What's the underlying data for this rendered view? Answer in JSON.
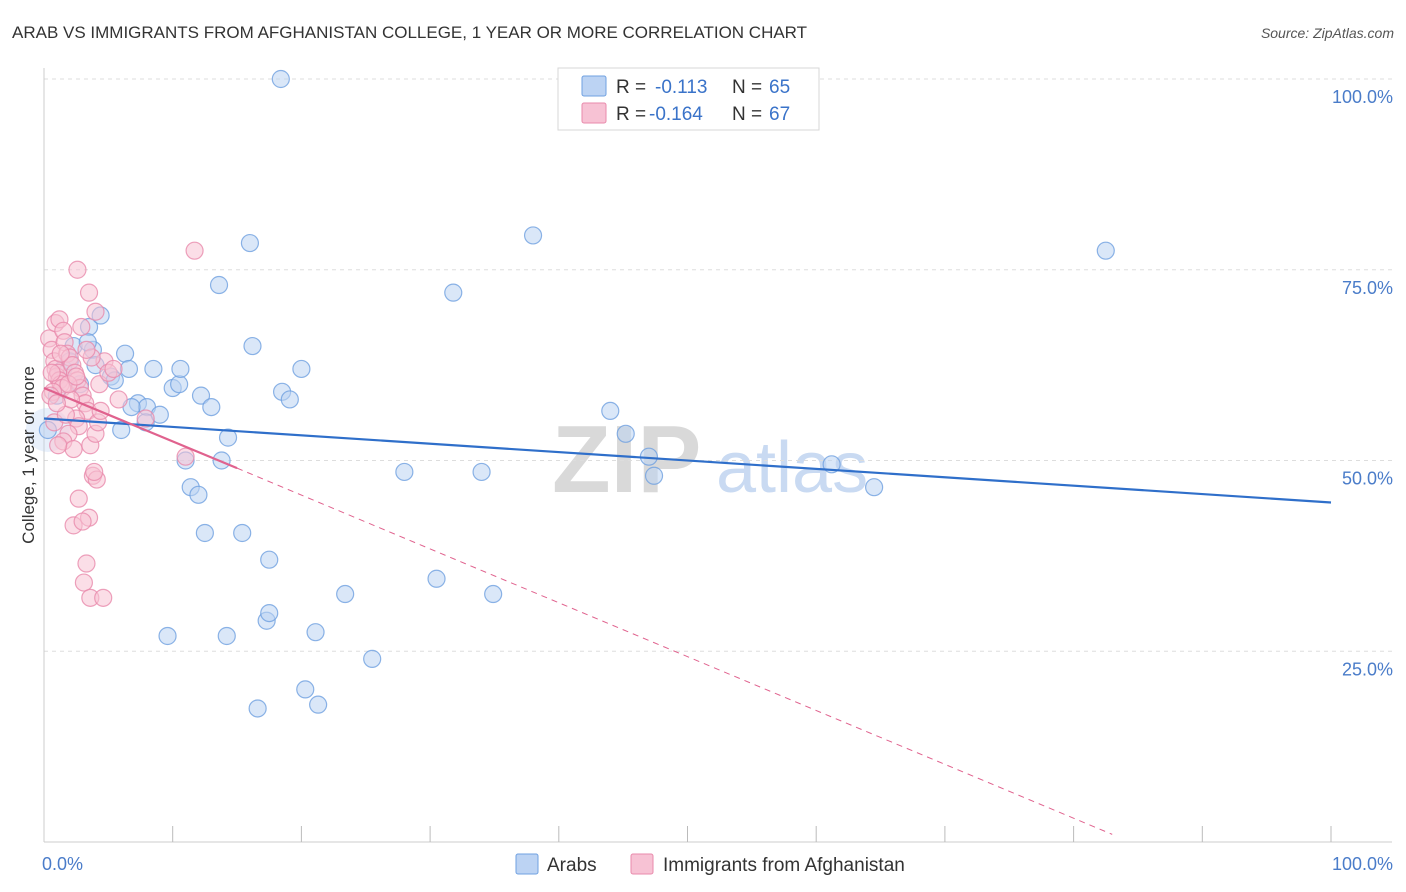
{
  "title": "ARAB VS IMMIGRANTS FROM AFGHANISTAN COLLEGE, 1 YEAR OR MORE CORRELATION CHART",
  "source": "Source: ZipAtlas.com",
  "watermark": {
    "zip": "ZIP",
    "atlas": "atlas"
  },
  "colors": {
    "arabs": "#6fa0e0",
    "arabs_fill": "#bcd3f3",
    "arabs_line": "#2f6fca",
    "afghan": "#e88aab",
    "afghan_fill": "#f7c2d4",
    "afghan_line": "#e0628e",
    "tick": "#4a7cc9",
    "grid": "#dddddd"
  },
  "legend_box": {
    "rows": [
      {
        "r_label": "R =",
        "r_value": "-0.113",
        "n_label": "N =",
        "n_value": "65"
      },
      {
        "r_label": "R =",
        "r_value": "-0.164",
        "n_label": "N =",
        "n_value": "67"
      }
    ]
  },
  "bottom_legend": [
    {
      "label": "Arabs"
    },
    {
      "label": "Immigrants from Afghanistan"
    }
  ],
  "chart_data": {
    "type": "scatter",
    "title": "ARAB VS IMMIGRANTS FROM AFGHANISTAN COLLEGE, 1 YEAR OR MORE CORRELATION CHART",
    "xlabel": "",
    "ylabel": "College, 1 year or more",
    "xlim": [
      0,
      100
    ],
    "ylim": [
      0,
      100
    ],
    "x_tick_labels": [
      "0.0%",
      "100.0%"
    ],
    "y_tick_labels": [
      "100.0%",
      "75.0%",
      "50.0%",
      "25.0%"
    ],
    "y_ticks": [
      100,
      75,
      50,
      25
    ],
    "legend_position": "top-center",
    "series": [
      {
        "name": "Arabs",
        "r": -0.113,
        "n": 65,
        "trend": {
          "x0": 0,
          "y0": 55.5,
          "x1": 100,
          "y1": 44.5
        },
        "points": [
          [
            0.3,
            54.0
          ],
          [
            2.3,
            65.0
          ],
          [
            3.5,
            67.5
          ],
          [
            3.8,
            64.5
          ],
          [
            4.4,
            69.0
          ],
          [
            3.4,
            65.5
          ],
          [
            5.2,
            61.0
          ],
          [
            6.3,
            64.0
          ],
          [
            6.6,
            62.0
          ],
          [
            6.0,
            54.0
          ],
          [
            7.3,
            57.5
          ],
          [
            8.0,
            57.0
          ],
          [
            7.9,
            55.0
          ],
          [
            9.0,
            56.0
          ],
          [
            8.5,
            62.0
          ],
          [
            10.0,
            59.5
          ],
          [
            10.5,
            60.0
          ],
          [
            10.6,
            62.0
          ],
          [
            11.0,
            50.0
          ],
          [
            11.4,
            46.5
          ],
          [
            12.0,
            45.5
          ],
          [
            12.5,
            40.5
          ],
          [
            12.2,
            58.5
          ],
          [
            13.0,
            57.0
          ],
          [
            13.6,
            73.0
          ],
          [
            13.8,
            50.0
          ],
          [
            14.3,
            53.0
          ],
          [
            15.4,
            40.5
          ],
          [
            16.0,
            78.5
          ],
          [
            16.2,
            65.0
          ],
          [
            17.5,
            37.0
          ],
          [
            18.5,
            59.0
          ],
          [
            19.1,
            58.0
          ],
          [
            17.3,
            29.0
          ],
          [
            17.5,
            30.0
          ],
          [
            20.0,
            62.0
          ],
          [
            18.4,
            100.0
          ],
          [
            21.1,
            27.5
          ],
          [
            20.3,
            20.0
          ],
          [
            21.3,
            18.0
          ],
          [
            23.4,
            32.5
          ],
          [
            25.5,
            24.0
          ],
          [
            16.6,
            17.5
          ],
          [
            14.2,
            27.0
          ],
          [
            9.6,
            27.0
          ],
          [
            28.0,
            48.5
          ],
          [
            30.5,
            34.5
          ],
          [
            31.8,
            72.0
          ],
          [
            34.0,
            48.5
          ],
          [
            34.9,
            32.5
          ],
          [
            38.0,
            79.5
          ],
          [
            44.0,
            56.5
          ],
          [
            45.2,
            53.5
          ],
          [
            47.0,
            50.5
          ],
          [
            47.4,
            48.0
          ],
          [
            61.2,
            49.5
          ],
          [
            64.5,
            46.5
          ],
          [
            82.5,
            77.5
          ],
          [
            1.5,
            62.0
          ],
          [
            2.8,
            60.0
          ],
          [
            5.5,
            60.5
          ],
          [
            2.0,
            63.0
          ],
          [
            4.0,
            62.5
          ],
          [
            6.8,
            57.0
          ],
          [
            1.0,
            58.5
          ]
        ]
      },
      {
        "name": "Immigrants from Afghanistan",
        "r": -0.164,
        "n": 67,
        "trend": {
          "x0": 0,
          "y0": 59.5,
          "x1": 15.0,
          "y1": 49.0
        },
        "trend_dashed": {
          "x0": 15.0,
          "y0": 49.0,
          "x1": 83.0,
          "y1": 1.0
        },
        "points": [
          [
            0.4,
            66.0
          ],
          [
            0.6,
            64.5
          ],
          [
            0.8,
            63.0
          ],
          [
            0.9,
            62.0
          ],
          [
            1.0,
            61.0
          ],
          [
            1.1,
            61.5
          ],
          [
            1.2,
            60.5
          ],
          [
            1.3,
            60.0
          ],
          [
            1.4,
            59.5
          ],
          [
            0.7,
            59.0
          ],
          [
            0.5,
            58.5
          ],
          [
            0.9,
            68.0
          ],
          [
            1.2,
            68.5
          ],
          [
            1.5,
            67.0
          ],
          [
            1.6,
            65.5
          ],
          [
            1.8,
            64.0
          ],
          [
            2.0,
            63.5
          ],
          [
            2.2,
            62.5
          ],
          [
            2.4,
            61.5
          ],
          [
            2.6,
            60.5
          ],
          [
            2.8,
            59.5
          ],
          [
            3.0,
            58.5
          ],
          [
            3.2,
            57.5
          ],
          [
            3.4,
            56.5
          ],
          [
            2.5,
            55.5
          ],
          [
            2.7,
            54.5
          ],
          [
            1.9,
            53.5
          ],
          [
            1.5,
            52.5
          ],
          [
            2.3,
            51.5
          ],
          [
            3.6,
            52.0
          ],
          [
            4.0,
            53.5
          ],
          [
            4.2,
            55.0
          ],
          [
            4.4,
            56.5
          ],
          [
            3.8,
            48.0
          ],
          [
            4.1,
            47.5
          ],
          [
            3.9,
            48.5
          ],
          [
            2.7,
            45.0
          ],
          [
            3.5,
            42.5
          ],
          [
            2.3,
            41.5
          ],
          [
            3.3,
            36.5
          ],
          [
            3.1,
            34.0
          ],
          [
            3.6,
            32.0
          ],
          [
            4.6,
            32.0
          ],
          [
            4.3,
            60.0
          ],
          [
            4.7,
            63.0
          ],
          [
            5.0,
            61.5
          ],
          [
            5.4,
            62.0
          ],
          [
            5.8,
            58.0
          ],
          [
            3.5,
            72.0
          ],
          [
            2.6,
            75.0
          ],
          [
            4.0,
            69.5
          ],
          [
            3.7,
            63.5
          ],
          [
            3.3,
            64.5
          ],
          [
            2.9,
            67.5
          ],
          [
            11.0,
            50.5
          ],
          [
            11.7,
            77.5
          ],
          [
            7.9,
            55.5
          ],
          [
            3.0,
            42.0
          ],
          [
            1.1,
            52.0
          ],
          [
            0.8,
            55.0
          ],
          [
            1.7,
            56.0
          ],
          [
            2.1,
            58.0
          ],
          [
            1.3,
            64.0
          ],
          [
            0.6,
            61.5
          ],
          [
            1.9,
            60.0
          ],
          [
            2.5,
            61.0
          ],
          [
            1.0,
            57.5
          ]
        ]
      }
    ]
  }
}
